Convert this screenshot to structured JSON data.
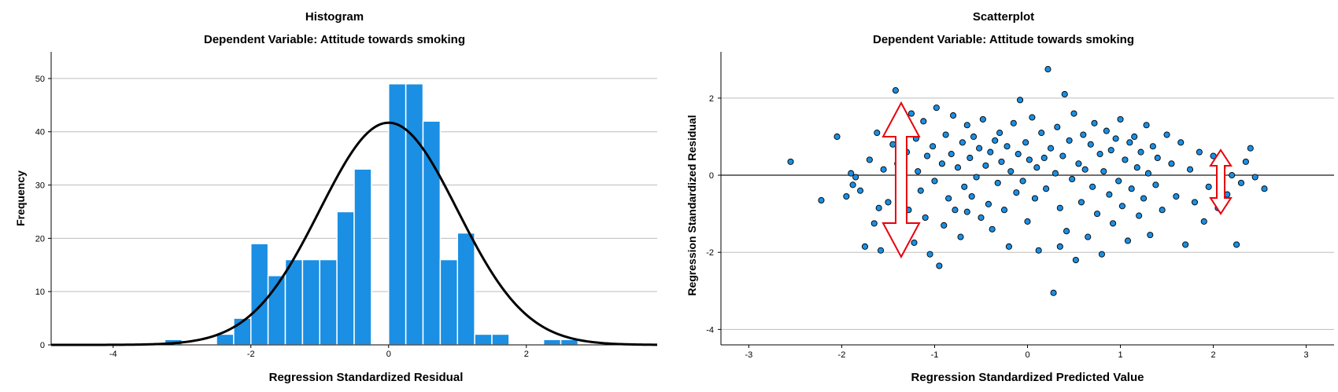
{
  "chart_data": [
    {
      "type": "bar",
      "title": "Histogram",
      "subtitle": "Dependent Variable: Attitude towards smoking",
      "xlabel": "Regression Standardized Residual",
      "ylabel": "Frequency",
      "xlim": [
        -4.9,
        3.9
      ],
      "ylim": [
        0,
        55
      ],
      "xticks": [
        -4,
        -2,
        0,
        2
      ],
      "yticks": [
        0,
        10,
        20,
        30,
        40,
        50
      ],
      "grid": "horizontal",
      "bar_color": "#1a8fe3",
      "bin_width": 0.25,
      "bins": [
        {
          "x0": -3.25,
          "value": 1
        },
        {
          "x0": -2.5,
          "value": 2
        },
        {
          "x0": -2.25,
          "value": 5
        },
        {
          "x0": -2.0,
          "value": 19
        },
        {
          "x0": -1.75,
          "value": 13
        },
        {
          "x0": -1.5,
          "value": 16
        },
        {
          "x0": -1.25,
          "value": 16
        },
        {
          "x0": -1.0,
          "value": 16
        },
        {
          "x0": -0.75,
          "value": 25
        },
        {
          "x0": -0.5,
          "value": 33
        },
        {
          "x0": 0.0,
          "value": 49
        },
        {
          "x0": 0.25,
          "value": 49
        },
        {
          "x0": 0.5,
          "value": 42
        },
        {
          "x0": 0.75,
          "value": 16
        },
        {
          "x0": 1.0,
          "value": 21
        },
        {
          "x0": 1.25,
          "value": 2
        },
        {
          "x0": 1.5,
          "value": 2
        },
        {
          "x0": 2.25,
          "value": 1
        },
        {
          "x0": 2.5,
          "value": 1
        }
      ],
      "normal_curve": {
        "mean": 0,
        "sd": 1,
        "peak": 41.7,
        "color": "#000000"
      }
    },
    {
      "type": "scatter",
      "title": "Scatterplot",
      "subtitle": "Dependent Variable: Attitude towards smoking",
      "xlabel": "Regression Standardized Predicted Value",
      "ylabel": "Regression Standardized Residual",
      "xlim": [
        -3.3,
        3.3
      ],
      "ylim": [
        -4.4,
        3.2
      ],
      "xticks": [
        -3,
        -2,
        -1,
        0,
        1,
        2,
        3
      ],
      "yticks": [
        -4,
        -2,
        0,
        2
      ],
      "grid": "horizontal",
      "reference_line_y": 0,
      "point_color": "#1a8fe3",
      "points": [
        [
          -2.55,
          0.35
        ],
        [
          -2.22,
          -0.65
        ],
        [
          -2.05,
          1.0
        ],
        [
          -1.95,
          -0.55
        ],
        [
          -1.9,
          0.05
        ],
        [
          -1.88,
          -0.25
        ],
        [
          -1.85,
          -0.05
        ],
        [
          -1.8,
          -0.4
        ],
        [
          -1.75,
          -1.85
        ],
        [
          -1.7,
          0.4
        ],
        [
          -1.65,
          -1.25
        ],
        [
          -1.62,
          1.1
        ],
        [
          -1.58,
          -1.95
        ],
        [
          -1.55,
          0.15
        ],
        [
          -1.5,
          -0.7
        ],
        [
          -1.45,
          0.8
        ],
        [
          -1.42,
          2.2
        ],
        [
          -1.4,
          0.3
        ],
        [
          -1.38,
          -0.2
        ],
        [
          -1.35,
          1.2
        ],
        [
          -1.32,
          -1.5
        ],
        [
          -1.3,
          0.6
        ],
        [
          -1.28,
          -0.9
        ],
        [
          -1.25,
          1.6
        ],
        [
          -1.22,
          -1.75
        ],
        [
          -1.2,
          0.95
        ],
        [
          -1.18,
          0.1
        ],
        [
          -1.15,
          -0.4
        ],
        [
          -1.12,
          1.4
        ],
        [
          -1.1,
          -1.1
        ],
        [
          -1.08,
          0.5
        ],
        [
          -1.05,
          -2.05
        ],
        [
          -1.02,
          0.75
        ],
        [
          -1.0,
          -0.15
        ],
        [
          -0.98,
          1.75
        ],
        [
          -0.95,
          -2.35
        ],
        [
          -0.92,
          0.3
        ],
        [
          -0.9,
          -1.3
        ],
        [
          -0.88,
          1.05
        ],
        [
          -0.85,
          -0.6
        ],
        [
          -0.82,
          0.55
        ],
        [
          -0.8,
          1.55
        ],
        [
          -0.78,
          -0.9
        ],
        [
          -0.75,
          0.2
        ],
        [
          -0.72,
          -1.6
        ],
        [
          -0.7,
          0.85
        ],
        [
          -0.68,
          -0.3
        ],
        [
          -0.65,
          1.3
        ],
        [
          -0.62,
          0.45
        ],
        [
          -0.6,
          -0.55
        ],
        [
          -0.58,
          1.0
        ],
        [
          -0.55,
          -0.05
        ],
        [
          -0.52,
          0.7
        ],
        [
          -0.5,
          -1.1
        ],
        [
          -0.48,
          1.45
        ],
        [
          -0.45,
          0.25
        ],
        [
          -0.42,
          -0.75
        ],
        [
          -0.4,
          0.6
        ],
        [
          -0.38,
          -1.4
        ],
        [
          -0.35,
          0.9
        ],
        [
          -0.32,
          -0.2
        ],
        [
          -0.3,
          1.1
        ],
        [
          -0.28,
          0.35
        ],
        [
          -0.25,
          -0.9
        ],
        [
          -0.22,
          0.75
        ],
        [
          -0.2,
          -1.85
        ],
        [
          -0.18,
          0.1
        ],
        [
          -0.15,
          1.35
        ],
        [
          -0.12,
          -0.45
        ],
        [
          -0.1,
          0.55
        ],
        [
          -0.08,
          1.95
        ],
        [
          -0.05,
          -0.15
        ],
        [
          -0.02,
          0.85
        ],
        [
          0.0,
          -1.2
        ],
        [
          0.02,
          0.4
        ],
        [
          0.05,
          1.5
        ],
        [
          0.08,
          -0.6
        ],
        [
          0.1,
          0.2
        ],
        [
          0.12,
          -1.95
        ],
        [
          0.15,
          1.1
        ],
        [
          0.18,
          0.45
        ],
        [
          0.2,
          -0.35
        ],
        [
          0.22,
          2.75
        ],
        [
          0.25,
          0.7
        ],
        [
          0.28,
          -3.05
        ],
        [
          0.3,
          0.05
        ],
        [
          0.32,
          1.25
        ],
        [
          0.35,
          -0.85
        ],
        [
          0.38,
          0.5
        ],
        [
          0.4,
          2.1
        ],
        [
          0.42,
          -1.45
        ],
        [
          0.45,
          0.9
        ],
        [
          0.48,
          -0.1
        ],
        [
          0.5,
          1.6
        ],
        [
          0.52,
          -2.2
        ],
        [
          0.55,
          0.3
        ],
        [
          0.58,
          -0.7
        ],
        [
          0.6,
          1.05
        ],
        [
          0.62,
          0.15
        ],
        [
          0.65,
          -1.6
        ],
        [
          0.68,
          0.8
        ],
        [
          0.7,
          -0.3
        ],
        [
          0.72,
          1.35
        ],
        [
          0.75,
          -1.0
        ],
        [
          0.78,
          0.55
        ],
        [
          0.8,
          -2.05
        ],
        [
          0.82,
          0.1
        ],
        [
          0.85,
          1.15
        ],
        [
          0.88,
          -0.5
        ],
        [
          0.9,
          0.65
        ],
        [
          0.92,
          -1.25
        ],
        [
          0.95,
          0.95
        ],
        [
          0.98,
          -0.15
        ],
        [
          1.0,
          1.45
        ],
        [
          1.02,
          -0.8
        ],
        [
          1.05,
          0.4
        ],
        [
          1.08,
          -1.7
        ],
        [
          1.1,
          0.85
        ],
        [
          1.12,
          -0.35
        ],
        [
          1.15,
          1.0
        ],
        [
          1.18,
          0.2
        ],
        [
          1.2,
          -1.05
        ],
        [
          1.22,
          0.6
        ],
        [
          1.25,
          -0.6
        ],
        [
          1.28,
          1.3
        ],
        [
          1.3,
          0.05
        ],
        [
          1.32,
          -1.55
        ],
        [
          1.35,
          0.75
        ],
        [
          1.38,
          -0.25
        ],
        [
          1.4,
          0.45
        ],
        [
          1.45,
          -0.9
        ],
        [
          1.5,
          1.05
        ],
        [
          1.55,
          0.3
        ],
        [
          1.6,
          -0.55
        ],
        [
          1.65,
          0.85
        ],
        [
          1.7,
          -1.8
        ],
        [
          1.75,
          0.15
        ],
        [
          1.8,
          -0.7
        ],
        [
          1.85,
          0.6
        ],
        [
          1.9,
          -1.2
        ],
        [
          1.95,
          -0.3
        ],
        [
          2.0,
          0.5
        ],
        [
          2.05,
          -0.85
        ],
        [
          2.1,
          0.2
        ],
        [
          2.15,
          -0.5
        ],
        [
          2.2,
          0.0
        ],
        [
          2.25,
          -1.8
        ],
        [
          2.3,
          -0.2
        ],
        [
          2.35,
          0.35
        ],
        [
          2.4,
          0.7
        ],
        [
          2.45,
          -0.05
        ],
        [
          2.55,
          -0.35
        ],
        [
          -1.6,
          -0.85
        ],
        [
          -0.65,
          -0.95
        ],
        [
          0.35,
          -1.85
        ]
      ]
    }
  ]
}
